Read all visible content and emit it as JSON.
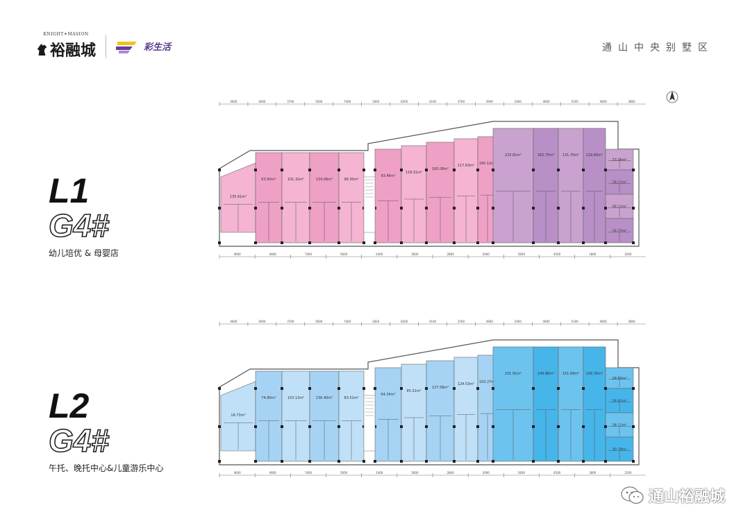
{
  "header": {
    "logo_en": "KNIGHT⚜MASION",
    "logo_cn": "裕融城",
    "sub_logo_text": "彩生活",
    "region_title": "通山中央别墅区"
  },
  "levels": [
    {
      "level": "L1",
      "building": "G4#",
      "description": "幼儿培优 & 母婴店",
      "palette": [
        "#f4b4d2",
        "#efa0c5",
        "#c9a2cf",
        "#b88fc7"
      ],
      "unit_areas": [
        "135.61m²",
        "63.60m²",
        "101.32m²",
        "134.06m²",
        "98.30m²",
        "93.46m²",
        "118.51m²",
        "165.08m²",
        "117.63m²",
        "160.12m²",
        "233.81m²",
        "162.75m²",
        "131.70m²",
        "119.85m²",
        "23.36m²",
        "28.21m²",
        "38.12m²",
        "16.73m²"
      ],
      "top_dims": [
        "4600",
        "4600",
        "3700",
        "5600",
        "7400",
        "1820",
        "6200",
        "4100",
        "3700",
        "3900",
        "2400",
        "4600",
        "5100",
        "4600",
        "3800"
      ],
      "bottom_dims": [
        "4600",
        "4600",
        "7400",
        "5600",
        "2400",
        "5600",
        "2800",
        "3000",
        "5600",
        "4500",
        "1800",
        "2200"
      ]
    },
    {
      "level": "L2",
      "building": "G4#",
      "description": "午托、晚托中心&儿童游乐中心",
      "palette": [
        "#bfe0f7",
        "#a6d3f3",
        "#6cc3ee",
        "#46b5ea"
      ],
      "unit_areas": [
        "16.73m²",
        "74.80m²",
        "103.12m²",
        "136.40m²",
        "83.52m²",
        "64.34m²",
        "95.31m²",
        "127.58m²",
        "124.53m²",
        "103.27m²",
        "231.91m²",
        "149.86m²",
        "151.69m²",
        "106.35m²",
        "28.60m²",
        "28.41m²",
        "38.12m²",
        "30.79m²"
      ],
      "top_dims": [
        "4600",
        "4600",
        "3700",
        "5600",
        "7400",
        "1820",
        "6200",
        "4100",
        "3700",
        "3900",
        "2400",
        "4600",
        "5100",
        "4600",
        "3800"
      ],
      "bottom_dims": [
        "4600",
        "4600",
        "7400",
        "5600",
        "2400",
        "5600",
        "2800",
        "3000",
        "5600",
        "4500",
        "1800",
        "2200"
      ]
    }
  ],
  "watermark": {
    "text": "通山裕融城",
    "icon": "wechat-icon"
  }
}
